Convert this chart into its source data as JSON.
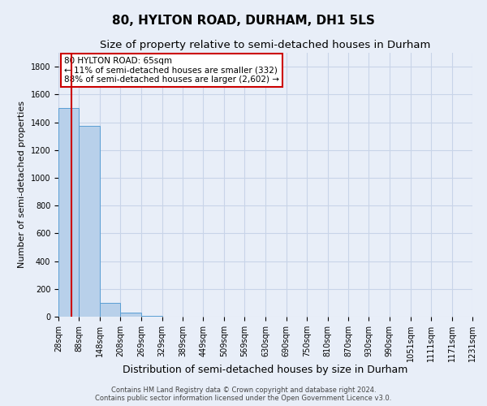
{
  "title": "80, HYLTON ROAD, DURHAM, DH1 5LS",
  "subtitle": "Size of property relative to semi-detached houses in Durham",
  "xlabel": "Distribution of semi-detached houses by size in Durham",
  "ylabel": "Number of semi-detached properties",
  "footer_line1": "Contains HM Land Registry data © Crown copyright and database right 2024.",
  "footer_line2": "Contains public sector information licensed under the Open Government Licence v3.0.",
  "bin_edges": [
    28,
    88,
    148,
    208,
    269,
    329,
    389,
    449,
    509,
    569,
    630,
    690,
    750,
    810,
    870,
    930,
    990,
    1051,
    1111,
    1171,
    1231
  ],
  "bin_labels": [
    "28sqm",
    "88sqm",
    "148sqm",
    "208sqm",
    "269sqm",
    "329sqm",
    "389sqm",
    "449sqm",
    "509sqm",
    "569sqm",
    "630sqm",
    "690sqm",
    "750sqm",
    "810sqm",
    "870sqm",
    "930sqm",
    "990sqm",
    "1051sqm",
    "1111sqm",
    "1171sqm",
    "1231sqm"
  ],
  "bar_heights": [
    1500,
    1375,
    100,
    30,
    5,
    2,
    1,
    1,
    0,
    1,
    0,
    0,
    1,
    0,
    0,
    0,
    0,
    0,
    0,
    0
  ],
  "bar_color": "#b8d0ea",
  "bar_edge_color": "#5a9fd4",
  "grid_color": "#c8d4e8",
  "background_color": "#e8eef8",
  "property_line_x": 65,
  "property_line_color": "#cc0000",
  "annotation_text": "80 HYLTON ROAD: 65sqm\n← 11% of semi-detached houses are smaller (332)\n88% of semi-detached houses are larger (2,602) →",
  "annotation_box_color": "#ffffff",
  "annotation_box_edge_color": "#cc0000",
  "ylim": [
    0,
    1900
  ],
  "yticks": [
    0,
    200,
    400,
    600,
    800,
    1000,
    1200,
    1400,
    1600,
    1800
  ],
  "title_fontsize": 11,
  "subtitle_fontsize": 9.5,
  "ylabel_fontsize": 8,
  "xlabel_fontsize": 9,
  "annotation_fontsize": 7.5,
  "tick_fontsize": 7
}
